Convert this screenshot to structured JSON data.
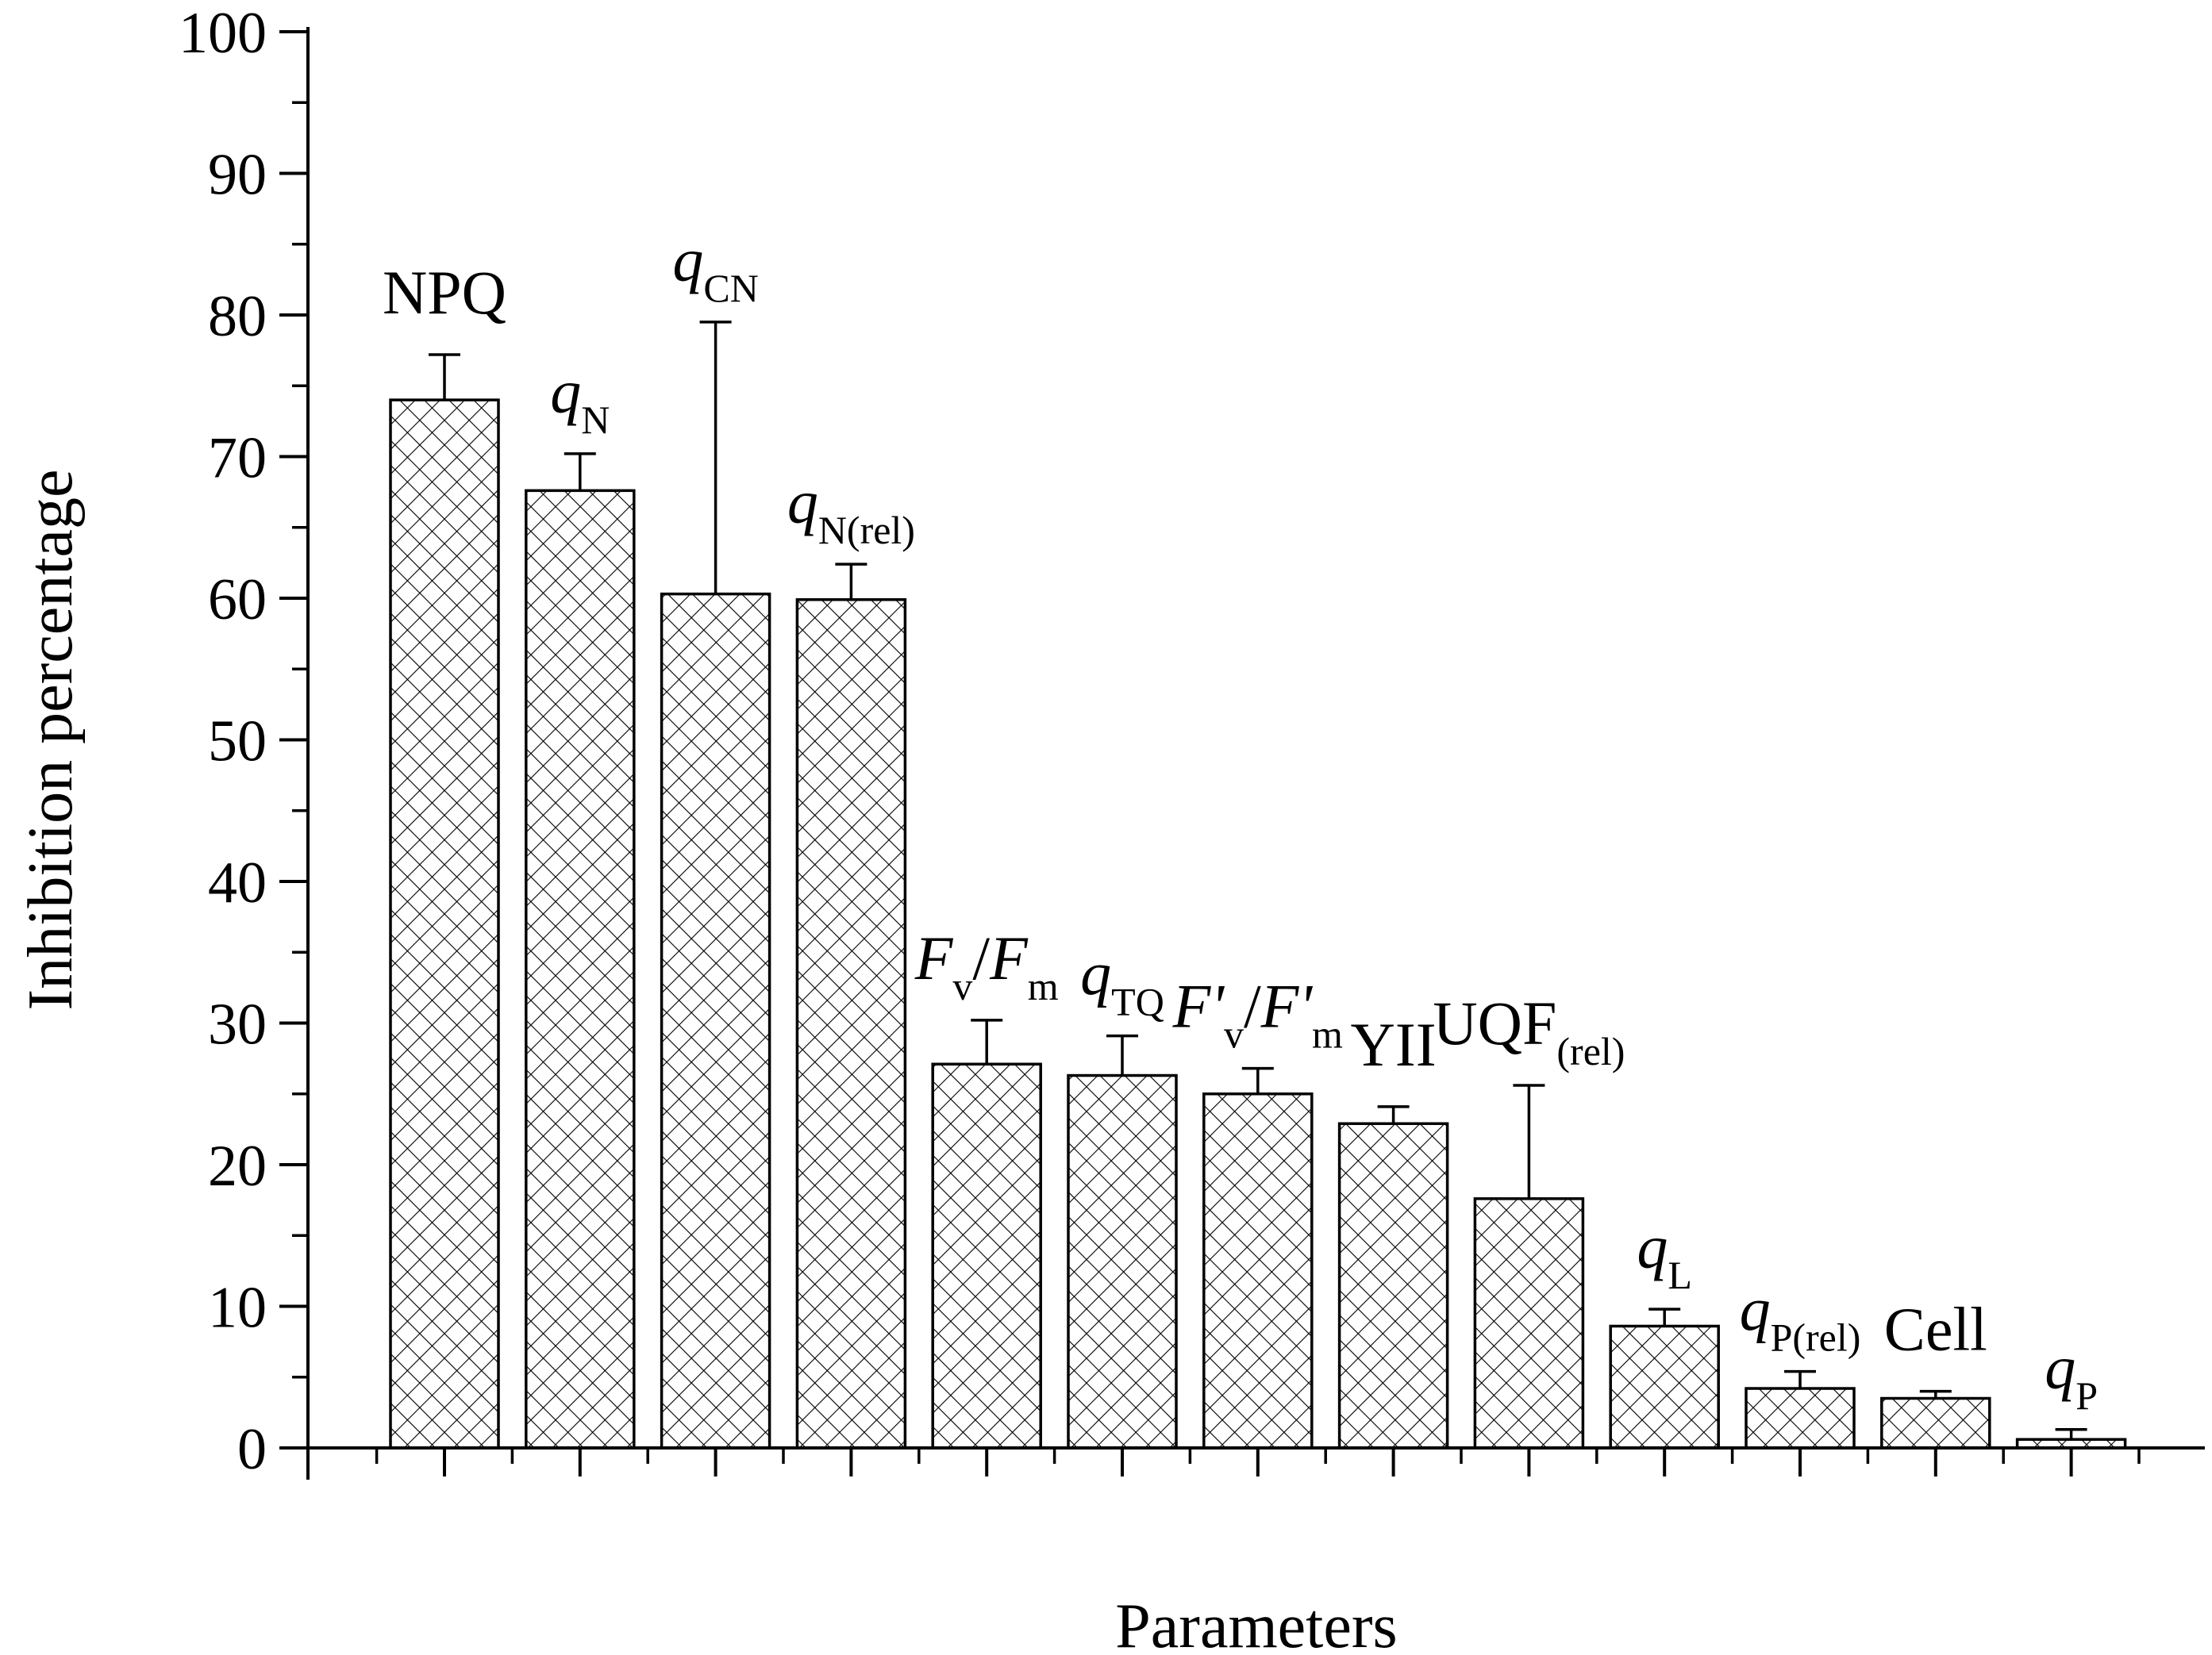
{
  "chart_data": {
    "type": "bar",
    "xlabel": "Parameters",
    "ylabel": "Inhibition percentage",
    "ylim": [
      0,
      100
    ],
    "yticks": [
      0,
      10,
      20,
      30,
      40,
      50,
      60,
      70,
      80,
      90,
      100
    ],
    "grid": false,
    "pattern": "crosshatch",
    "bars": [
      {
        "label": "NPQ",
        "value": 74.0,
        "error": 3.2,
        "label_parts": [
          {
            "t": "NPQ"
          }
        ]
      },
      {
        "label": "qN",
        "value": 67.6,
        "error": 2.6,
        "label_parts": [
          {
            "t": "q",
            "i": true
          },
          {
            "t": "N",
            "sub": true
          }
        ]
      },
      {
        "label": "qCN",
        "value": 60.3,
        "error": 19.2,
        "label_parts": [
          {
            "t": "q",
            "i": true
          },
          {
            "t": "CN",
            "sub": true
          }
        ]
      },
      {
        "label": "qN(rel)",
        "value": 59.9,
        "error": 2.5,
        "label_parts": [
          {
            "t": "q",
            "i": true
          },
          {
            "t": "N(rel)",
            "sub": true
          }
        ]
      },
      {
        "label": "Fv/Fm",
        "value": 27.1,
        "error": 3.1,
        "label_parts": [
          {
            "t": "F",
            "i": true
          },
          {
            "t": "v",
            "sub": true
          },
          {
            "t": "/"
          },
          {
            "t": "F",
            "i": true
          },
          {
            "t": "m",
            "sub": true
          }
        ]
      },
      {
        "label": "qTQ",
        "value": 26.3,
        "error": 2.8,
        "label_parts": [
          {
            "t": "q",
            "i": true
          },
          {
            "t": "TQ",
            "sub": true
          }
        ]
      },
      {
        "label": "F'v/F'm",
        "value": 25.0,
        "error": 1.8,
        "label_parts": [
          {
            "t": "F'",
            "i": true
          },
          {
            "t": "v",
            "sub": true
          },
          {
            "t": "/"
          },
          {
            "t": "F'",
            "i": true
          },
          {
            "t": "m",
            "sub": true
          }
        ]
      },
      {
        "label": "YII",
        "value": 22.9,
        "error": 1.2,
        "label_parts": [
          {
            "t": "YII"
          }
        ]
      },
      {
        "label": "UQF(rel)",
        "value": 17.6,
        "error": 8.0,
        "label_parts": [
          {
            "t": "UQF"
          },
          {
            "t": "(rel)",
            "sub": true
          }
        ]
      },
      {
        "label": "qL",
        "value": 8.6,
        "error": 1.2,
        "label_parts": [
          {
            "t": "q",
            "i": true
          },
          {
            "t": "L",
            "sub": true
          }
        ]
      },
      {
        "label": "qP(rel)",
        "value": 4.2,
        "error": 1.2,
        "label_parts": [
          {
            "t": "q",
            "i": true
          },
          {
            "t": "P(rel)",
            "sub": true
          }
        ]
      },
      {
        "label": "Cell",
        "value": 3.5,
        "error": 0.5,
        "label_parts": [
          {
            "t": "Cell"
          }
        ]
      },
      {
        "label": "qP",
        "value": 0.6,
        "error": 0.7,
        "label_parts": [
          {
            "t": "q",
            "i": true
          },
          {
            "t": "P",
            "sub": true
          }
        ]
      }
    ]
  }
}
